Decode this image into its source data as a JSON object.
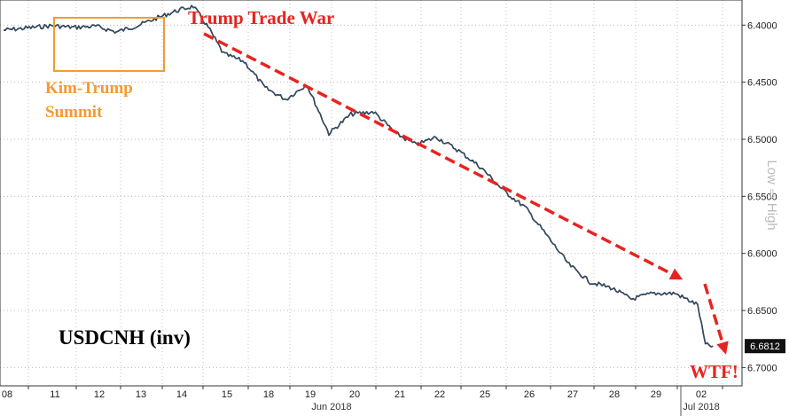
{
  "chart_data": {
    "type": "line",
    "title": "USDCNH (inv)",
    "y_axis": {
      "inverted": true,
      "ylim": [
        6.378,
        6.716
      ],
      "ticks": [
        "6.4000",
        "6.4500",
        "6.5000",
        "6.5500",
        "6.6000",
        "6.6500",
        "6.7000"
      ],
      "side_label": "Low ⇒ High"
    },
    "x_axis": {
      "ticks": [
        "08",
        "11",
        "12",
        "13",
        "14",
        "15",
        "18",
        "19",
        "20",
        "21",
        "22",
        "25",
        "26",
        "27",
        "28",
        "29",
        "02"
      ],
      "months": [
        "Jun 2018",
        "Jul 2018"
      ]
    },
    "grid": true,
    "last_value": "6.6812",
    "series": [
      {
        "x": [
          "08",
          "08",
          "11",
          "11",
          "12",
          "12",
          "13",
          "13",
          "14",
          "14",
          "14",
          "15",
          "15",
          "18",
          "18",
          "19",
          "19",
          "20",
          "20",
          "21",
          "21",
          "22",
          "22",
          "25",
          "25",
          "26",
          "26",
          "27",
          "27",
          "28",
          "28",
          "29",
          "29",
          "02",
          "02",
          "02"
        ],
        "values": [
          6.4045,
          6.4025,
          6.4005,
          6.402,
          6.401,
          6.406,
          6.4005,
          6.3935,
          6.387,
          6.3835,
          6.402,
          6.425,
          6.432,
          6.455,
          6.465,
          6.452,
          6.495,
          6.478,
          6.476,
          6.495,
          6.505,
          6.498,
          6.51,
          6.525,
          6.545,
          6.56,
          6.585,
          6.61,
          6.625,
          6.63,
          6.64,
          6.635,
          6.635,
          6.645,
          6.68,
          6.6812
        ]
      }
    ],
    "annotations": {
      "trade_war": "Trump Trade War",
      "summit_line1": "Kim-Trump",
      "summit_line2": "Summit",
      "wtf": "WTF!"
    }
  }
}
